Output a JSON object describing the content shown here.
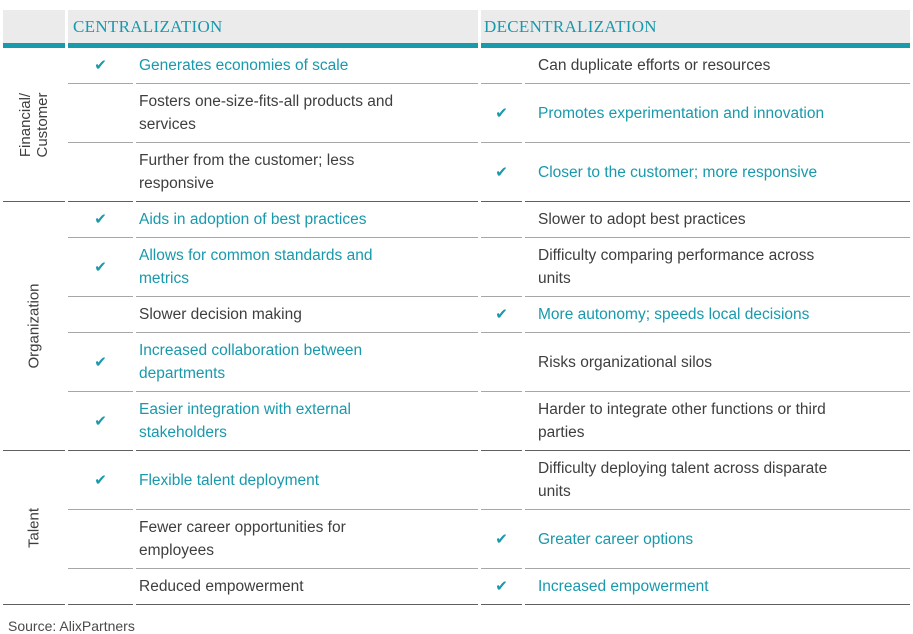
{
  "colors": {
    "accent_teal": "#1899ac",
    "header_background": "#ebebeb",
    "body_text": "#3e3e3e",
    "divider": "#a7a7a7",
    "divider_strong": "#5f5f5f"
  },
  "icons": {
    "check": "✔"
  },
  "chart_data": {
    "type": "table",
    "columns": [
      "CENTRALIZATION",
      "DECENTRALIZATION"
    ],
    "source": "Source: AlixPartners",
    "groups": [
      {
        "label": "Financial/\nCustomer",
        "rows": [
          {
            "left": {
              "checked": true,
              "highlight": true,
              "text": "Generates economies of scale"
            },
            "right": {
              "checked": false,
              "highlight": false,
              "text": "Can duplicate efforts or resources"
            }
          },
          {
            "left": {
              "checked": false,
              "highlight": false,
              "text": "Fosters one-size-fits-all products and\nservices"
            },
            "right": {
              "checked": true,
              "highlight": true,
              "text": "Promotes experimentation and innovation"
            }
          },
          {
            "left": {
              "checked": false,
              "highlight": false,
              "text": "Further from the customer; less\nresponsive"
            },
            "right": {
              "checked": true,
              "highlight": true,
              "text": "Closer to the customer; more responsive"
            }
          }
        ]
      },
      {
        "label": "Organization",
        "rows": [
          {
            "left": {
              "checked": true,
              "highlight": true,
              "text": "Aids in adoption of best practices"
            },
            "right": {
              "checked": false,
              "highlight": false,
              "text": "Slower to adopt best practices"
            }
          },
          {
            "left": {
              "checked": true,
              "highlight": true,
              "text": "Allows for common standards and\nmetrics"
            },
            "right": {
              "checked": false,
              "highlight": false,
              "text": "Difficulty comparing performance across\nunits"
            }
          },
          {
            "left": {
              "checked": false,
              "highlight": false,
              "text": "Slower decision making"
            },
            "right": {
              "checked": true,
              "highlight": true,
              "text": "More autonomy; speeds local decisions"
            }
          },
          {
            "left": {
              "checked": true,
              "highlight": true,
              "text": "Increased collaboration between\ndepartments"
            },
            "right": {
              "checked": false,
              "highlight": false,
              "text": "Risks organizational silos"
            }
          },
          {
            "left": {
              "checked": true,
              "highlight": true,
              "text": "Easier integration with external\nstakeholders"
            },
            "right": {
              "checked": false,
              "highlight": false,
              "text": "Harder to integrate other functions or third\nparties"
            }
          }
        ]
      },
      {
        "label": "Talent",
        "rows": [
          {
            "left": {
              "checked": true,
              "highlight": true,
              "text": "Flexible talent deployment"
            },
            "right": {
              "checked": false,
              "highlight": false,
              "text": "Difficulty deploying talent across disparate\nunits"
            }
          },
          {
            "left": {
              "checked": false,
              "highlight": false,
              "text": "Fewer career opportunities for\nemployees"
            },
            "right": {
              "checked": true,
              "highlight": true,
              "text": "Greater career options"
            }
          },
          {
            "left": {
              "checked": false,
              "highlight": false,
              "text": "Reduced empowerment"
            },
            "right": {
              "checked": true,
              "highlight": true,
              "text": "Increased empowerment"
            }
          }
        ]
      }
    ]
  }
}
